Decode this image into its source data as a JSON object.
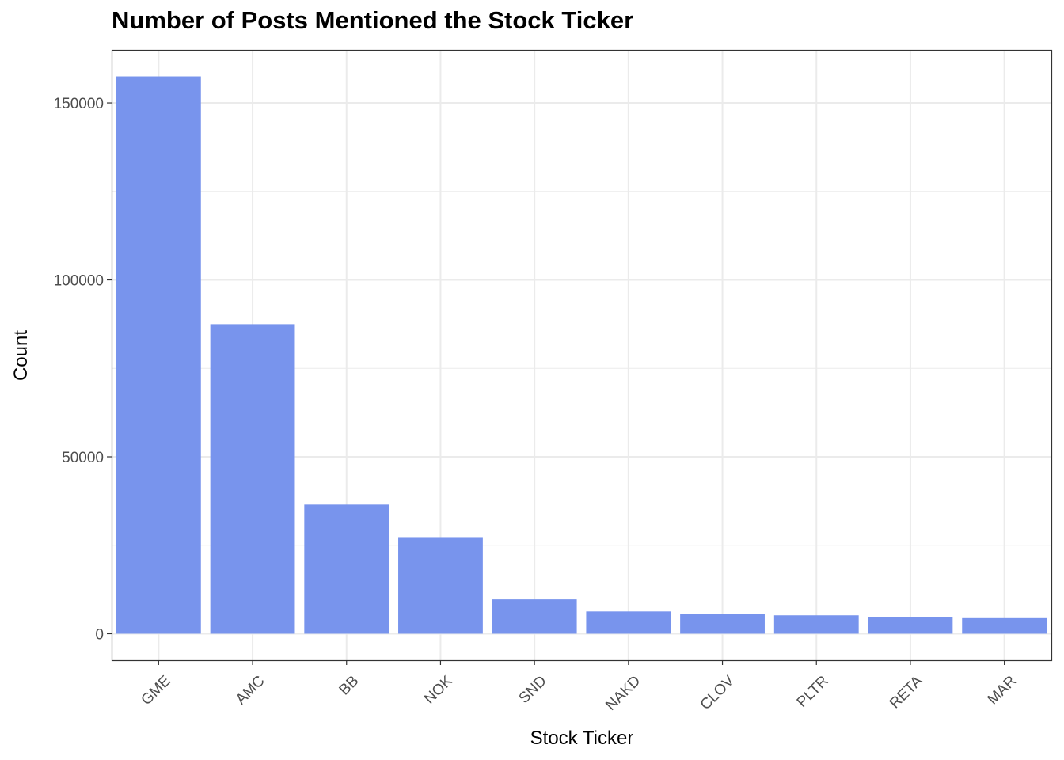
{
  "chart_data": {
    "type": "bar",
    "title": "Number of Posts Mentioned the Stock Ticker",
    "xlabel": "Stock Ticker",
    "ylabel": "Count",
    "categories": [
      "GME",
      "AMC",
      "BB",
      "NOK",
      "SND",
      "NAKD",
      "CLOV",
      "PLTR",
      "RETA",
      "MAR"
    ],
    "values": [
      157500,
      87500,
      36500,
      27300,
      9700,
      6300,
      5500,
      5200,
      4600,
      4400
    ],
    "ylim": [
      -7500,
      165000
    ],
    "yticks": [
      0,
      50000,
      100000,
      150000
    ],
    "ytick_labels": [
      "0",
      "50000",
      "100000",
      "150000"
    ],
    "grid": true,
    "legend": "none",
    "colors": {
      "bar": "#7894ed",
      "grid": "#ebebeb",
      "panel_border": "#333333",
      "tick_text": "#4d4d4d"
    }
  }
}
